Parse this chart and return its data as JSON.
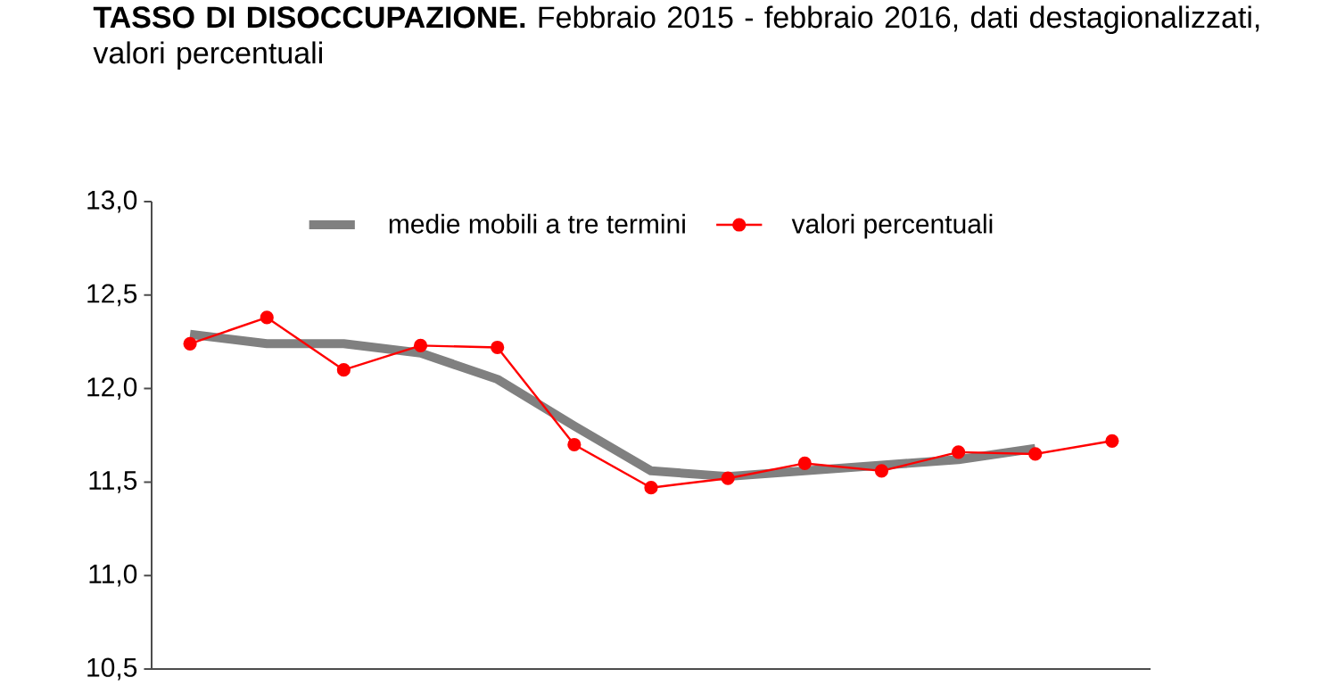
{
  "chart_data": {
    "type": "line",
    "title": "**TASSO DI DISOCCUPAZIONE.** Febbraio 2015 - febbraio 2016, dati destagionalizzati, valori percentuali",
    "categories": [
      null,
      null,
      null,
      null,
      null,
      null,
      null,
      null,
      null,
      null,
      null,
      null,
      null
    ],
    "series": [
      {
        "name": "medie mobili a tre termini",
        "color": "#808080",
        "marker": "none",
        "values": [
          12.29,
          12.24,
          12.24,
          12.19,
          12.05,
          11.8,
          11.56,
          11.53,
          11.56,
          11.59,
          11.62,
          11.68,
          null
        ]
      },
      {
        "name": "valori percentuali",
        "color": "#ff0000",
        "marker": "circle",
        "values": [
          12.24,
          12.38,
          12.1,
          12.23,
          12.22,
          11.7,
          11.47,
          11.52,
          11.6,
          11.56,
          11.66,
          11.65,
          11.72
        ]
      }
    ],
    "ylim": [
      10.5,
      13.0
    ],
    "yticks": [
      {
        "value": 10.5,
        "label": "10,5"
      },
      {
        "value": 11.0,
        "label": "11,0"
      },
      {
        "value": 11.5,
        "label": "11,5"
      },
      {
        "value": 12.0,
        "label": "12,0"
      },
      {
        "value": 12.5,
        "label": "12,5"
      },
      {
        "value": 13.0,
        "label": "13,0"
      }
    ],
    "tick_labels": "y",
    "legend": "top",
    "grid": false
  }
}
